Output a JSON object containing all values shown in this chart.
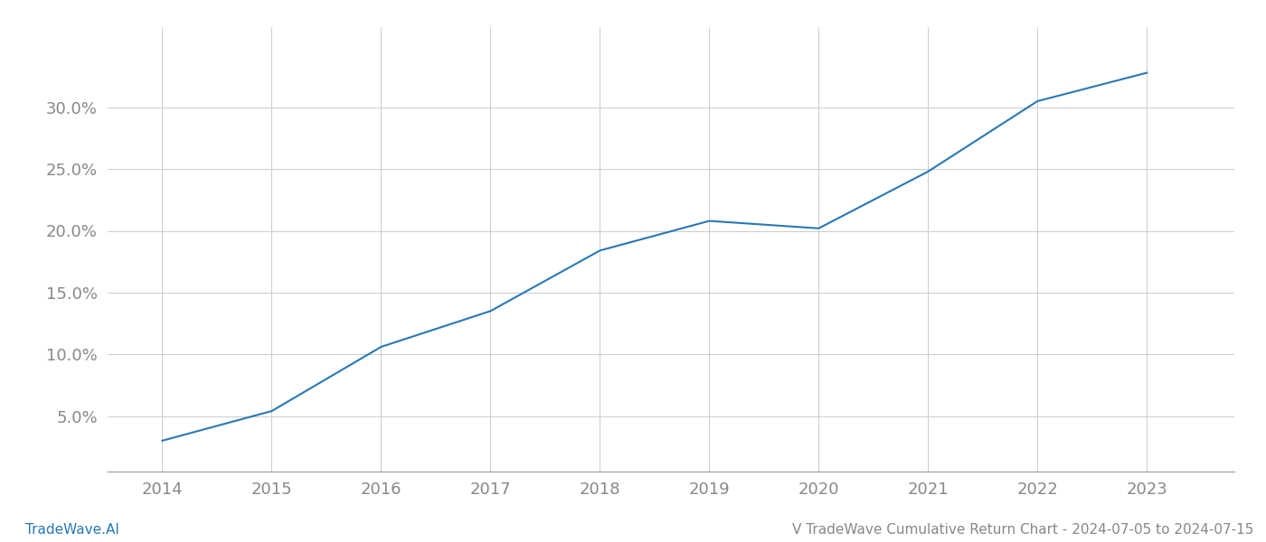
{
  "x_years": [
    2014,
    2015,
    2016,
    2017,
    2018,
    2019,
    2020,
    2021,
    2022,
    2023
  ],
  "y_values": [
    0.03,
    0.054,
    0.106,
    0.135,
    0.184,
    0.208,
    0.202,
    0.248,
    0.305,
    0.328
  ],
  "line_color": "#2878b5",
  "line_width": 1.5,
  "background_color": "#ffffff",
  "grid_color": "#cccccc",
  "tick_color": "#888888",
  "ylabel_ticks": [
    0.05,
    0.1,
    0.15,
    0.2,
    0.25,
    0.3
  ],
  "ytick_labels": [
    "5.0%",
    "10.0%",
    "15.0%",
    "20.0%",
    "25.0%",
    "30.0%"
  ],
  "xtick_labels": [
    "2014",
    "2015",
    "2016",
    "2017",
    "2018",
    "2019",
    "2020",
    "2021",
    "2022",
    "2023"
  ],
  "ylim": [
    0.005,
    0.365
  ],
  "xlim": [
    2013.5,
    2023.8
  ],
  "footer_left": "TradeWave.AI",
  "footer_right": "V TradeWave Cumulative Return Chart - 2024-07-05 to 2024-07-15",
  "footer_color": "#888888",
  "footer_left_color": "#2878b5",
  "tick_fontsize": 13,
  "footer_fontsize": 11
}
